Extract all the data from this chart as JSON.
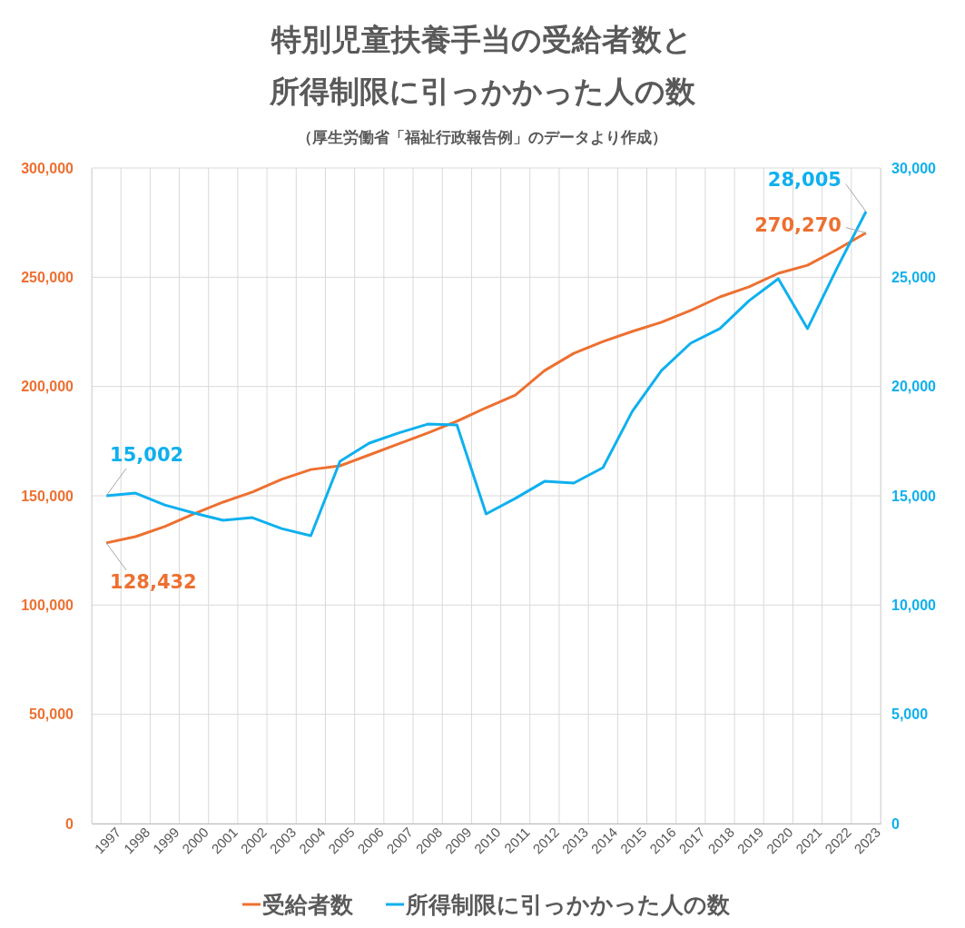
{
  "chart_data": {
    "type": "line",
    "title": "特別児童扶養手当の受給者数と所得制限に引っかかった人の数",
    "subtitle": "（厚生労働省「福祉行政報告例」のデータより作成）",
    "categories": [
      "1997",
      "1998",
      "1999",
      "2000",
      "2001",
      "2002",
      "2003",
      "2004",
      "2005",
      "2006",
      "2007",
      "2008",
      "2009",
      "2010",
      "2011",
      "2012",
      "2013",
      "2014",
      "2015",
      "2016",
      "2017",
      "2018",
      "2019",
      "2020",
      "2021",
      "2022",
      "2023"
    ],
    "series": [
      {
        "name": "受給者数",
        "color": "#ed7031",
        "values": [
          128432,
          131300,
          135900,
          141700,
          147100,
          151700,
          157500,
          162000,
          163700,
          168700,
          173700,
          178700,
          184100,
          190300,
          196100,
          207300,
          215200,
          220600,
          225200,
          229400,
          234800,
          241000,
          245600,
          251800,
          255500,
          262600,
          270270
        ],
        "value_labels": [
          "128,432",
          null,
          null,
          null,
          null,
          null,
          null,
          null,
          null,
          null,
          null,
          null,
          null,
          null,
          null,
          null,
          null,
          null,
          null,
          null,
          null,
          null,
          null,
          null,
          null,
          null,
          "270,270"
        ]
      },
      {
        "name": "所得制限に引っかかった人の数",
        "color": "#0fb0ee",
        "axis": "y2",
        "values": [
          15002,
          15120,
          14580,
          14210,
          13880,
          14000,
          13500,
          13170,
          16580,
          17410,
          17870,
          18280,
          18240,
          14170,
          14880,
          15660,
          15580,
          16290,
          18860,
          20730,
          21980,
          22650,
          23930,
          24930,
          22650,
          25390,
          28005
        ],
        "value_labels": [
          "15,002",
          null,
          null,
          null,
          null,
          null,
          null,
          null,
          null,
          null,
          null,
          null,
          null,
          null,
          null,
          null,
          null,
          null,
          null,
          null,
          null,
          null,
          null,
          null,
          null,
          null,
          "28,005"
        ]
      }
    ],
    "ylim": [
      0,
      300000
    ],
    "yticks": [
      {
        "value": 0,
        "label": "0"
      },
      {
        "value": 50000,
        "label": "50,000"
      },
      {
        "value": 100000,
        "label": "100,000"
      },
      {
        "value": 150000,
        "label": "150,000"
      },
      {
        "value": 200000,
        "label": "200,000"
      },
      {
        "value": 250000,
        "label": "250,000"
      },
      {
        "value": 300000,
        "label": "300,000"
      }
    ],
    "y2lim": [
      0,
      30000
    ],
    "y2ticks": [
      {
        "value": 0,
        "label": "0"
      },
      {
        "value": 5000,
        "label": "5,000"
      },
      {
        "value": 10000,
        "label": "10,000"
      },
      {
        "value": 15000,
        "label": "15,000"
      },
      {
        "value": 20000,
        "label": "20,000"
      },
      {
        "value": 25000,
        "label": "25,000"
      },
      {
        "value": 30000,
        "label": "30,000"
      }
    ],
    "grid": true,
    "legend": "bottom",
    "marker": "none",
    "line_style": "solid"
  }
}
